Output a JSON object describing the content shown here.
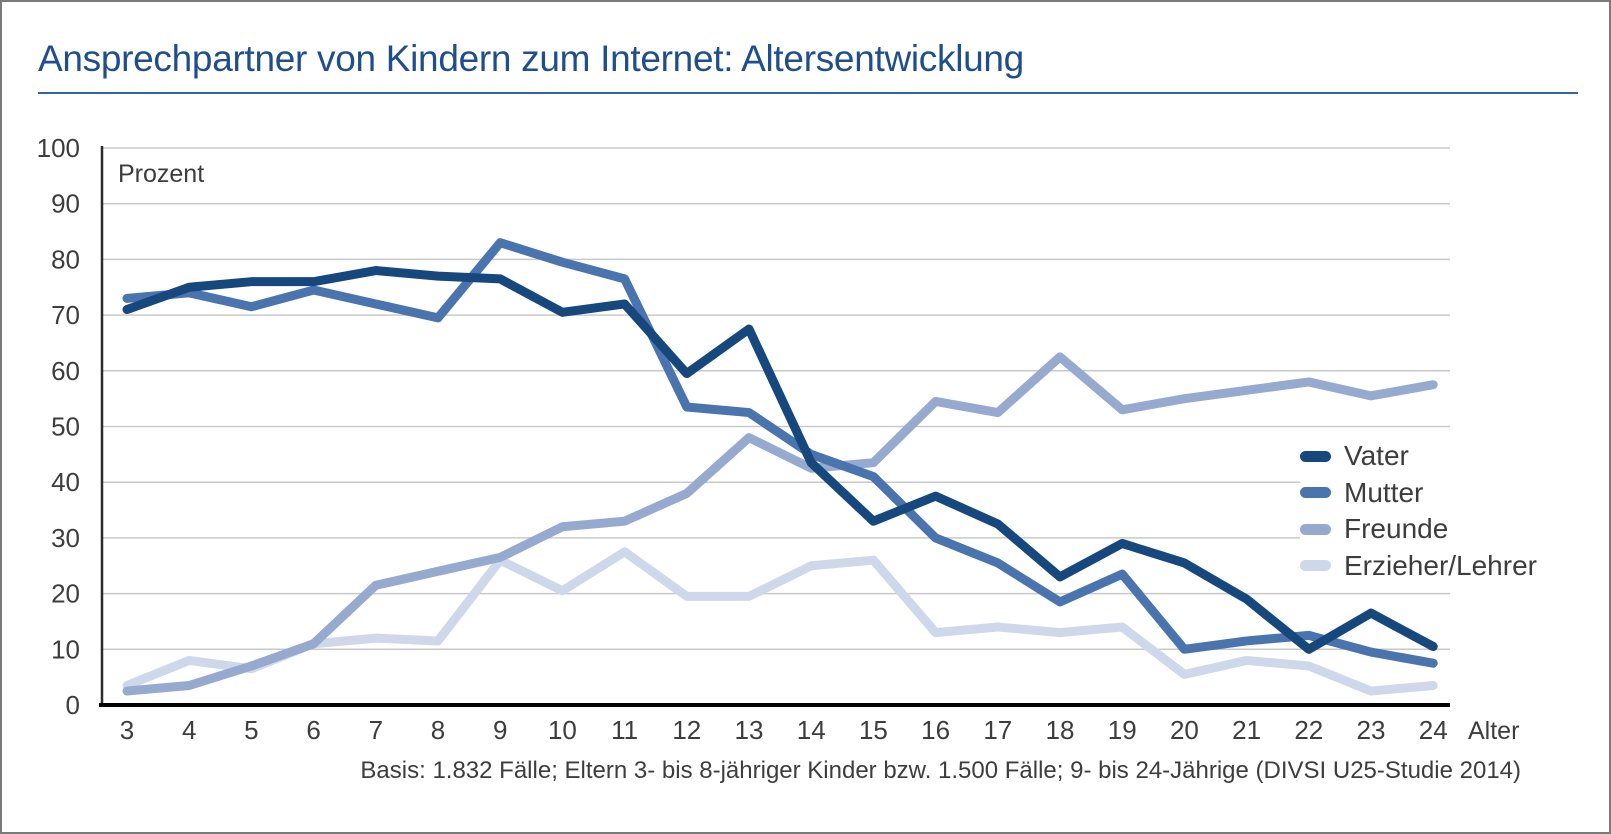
{
  "header": {
    "title": "Ansprechpartner von Kindern zum Internet: Altersentwicklung",
    "rule_color": "#2f64a7"
  },
  "chart_data": {
    "type": "line",
    "title": "Ansprechpartner von Kindern zum Internet: Altersentwicklung",
    "xlabel": "Alter",
    "ylabel": "Prozent",
    "x": [
      3,
      4,
      5,
      6,
      7,
      8,
      9,
      10,
      11,
      12,
      13,
      14,
      15,
      16,
      17,
      18,
      19,
      20,
      21,
      22,
      23,
      24
    ],
    "ylim": [
      0,
      100
    ],
    "ytick_step": 10,
    "grid": true,
    "legend_position": "right-middle",
    "series": [
      {
        "name": "Vater",
        "color": "#16477d",
        "values": [
          71,
          75,
          76,
          76,
          78,
          77,
          76.5,
          70.5,
          72,
          59.5,
          67.5,
          43.5,
          33,
          37.5,
          32.5,
          23,
          29,
          25.5,
          19,
          10,
          16.5,
          10.5
        ]
      },
      {
        "name": "Mutter",
        "color": "#4a74ad",
        "values": [
          73,
          74,
          71.5,
          74.5,
          72,
          69.5,
          83,
          79.5,
          76.5,
          53.5,
          52.5,
          45,
          41,
          30,
          25.5,
          18.5,
          23.5,
          10,
          11.5,
          12.5,
          9.5,
          7.5
        ]
      },
      {
        "name": "Freunde",
        "color": "#96a9cf",
        "values": [
          2.5,
          3.5,
          7,
          11,
          21.5,
          24,
          26.5,
          32,
          33,
          38,
          48,
          42.5,
          43.5,
          54.5,
          52.5,
          62.5,
          53,
          55,
          56.5,
          58,
          55.5,
          57.5
        ]
      },
      {
        "name": "Erzieher/Lehrer",
        "color": "#cfd8ea",
        "values": [
          3.5,
          8,
          6.5,
          11,
          12,
          11.5,
          26,
          20.5,
          27.5,
          19.5,
          19.5,
          25,
          26,
          13,
          14,
          13,
          14,
          5.5,
          8,
          7,
          2.5,
          3.5
        ]
      }
    ],
    "style": {
      "line_width": 9,
      "gridline_color": "#c9c9c9",
      "axis_color": "#000000",
      "text_color": "#3d3d3d"
    }
  },
  "footnote": "Basis: 1.832 Fälle; Eltern 3- bis 8-jähriger Kinder bzw. 1.500 Fälle; 9- bis 24-Jährige (DIVSI U25-Studie 2014)"
}
